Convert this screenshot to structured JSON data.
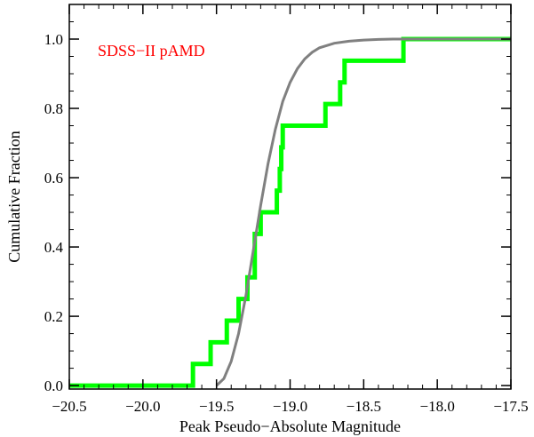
{
  "chart_data": {
    "type": "line",
    "title": "",
    "annotation": {
      "text": "SDSS−II pAMD",
      "color": "#ff0000"
    },
    "xlabel": "Peak Pseudo−Absolute Magnitude",
    "ylabel": "Cumulative Fraction",
    "xlim": [
      -20.5,
      -17.5
    ],
    "ylim": [
      -0.01,
      1.1
    ],
    "xticks": [
      -20.5,
      -20.0,
      -19.5,
      -19.0,
      -18.5,
      -18.0,
      -17.5
    ],
    "xtick_labels": [
      "−20.5",
      "−20.0",
      "−19.5",
      "−19.0",
      "−18.5",
      "−18.0",
      "−17.5"
    ],
    "yticks": [
      0.0,
      0.2,
      0.4,
      0.6,
      0.8,
      1.0
    ],
    "ytick_labels": [
      "0.0",
      "0.2",
      "0.4",
      "0.6",
      "0.8",
      "1.0"
    ],
    "grid": false,
    "series": [
      {
        "style": "step",
        "color": "#00ff00",
        "x": [
          -20.5,
          -19.66,
          -19.66,
          -19.54,
          -19.54,
          -19.43,
          -19.43,
          -19.35,
          -19.35,
          -19.29,
          -19.29,
          -19.24,
          -19.24,
          -19.2,
          -19.2,
          -19.09,
          -19.09,
          -19.07,
          -19.07,
          -19.06,
          -19.06,
          -19.05,
          -19.05,
          -19.03,
          -19.03,
          -18.76,
          -18.76,
          -18.66,
          -18.66,
          -18.63,
          -18.63,
          -18.23,
          -18.23,
          -17.5
        ],
        "y": [
          0.0,
          0.0,
          0.0625,
          0.0625,
          0.125,
          0.125,
          0.1875,
          0.1875,
          0.25,
          0.25,
          0.3125,
          0.3125,
          0.4375,
          0.4375,
          0.5,
          0.5,
          0.5625,
          0.5625,
          0.625,
          0.625,
          0.6875,
          0.6875,
          0.75,
          0.75,
          0.75,
          0.75,
          0.8125,
          0.8125,
          0.875,
          0.875,
          0.9375,
          0.9375,
          1.0,
          1.0
        ]
      },
      {
        "style": "line",
        "color": "#808080",
        "x": [
          -19.5,
          -19.45,
          -19.4,
          -19.35,
          -19.3,
          -19.25,
          -19.2,
          -19.15,
          -19.1,
          -19.05,
          -19.0,
          -18.95,
          -18.9,
          -18.85,
          -18.8,
          -18.7,
          -18.6,
          -18.5,
          -18.4,
          -18.3,
          -18.2,
          -18.1,
          -18.0,
          -17.5
        ],
        "y": [
          0.0,
          0.02,
          0.07,
          0.15,
          0.26,
          0.39,
          0.52,
          0.64,
          0.74,
          0.82,
          0.875,
          0.915,
          0.943,
          0.962,
          0.975,
          0.988,
          0.994,
          0.997,
          0.999,
          1.0,
          1.0,
          1.0,
          1.0,
          1.0
        ]
      }
    ]
  }
}
